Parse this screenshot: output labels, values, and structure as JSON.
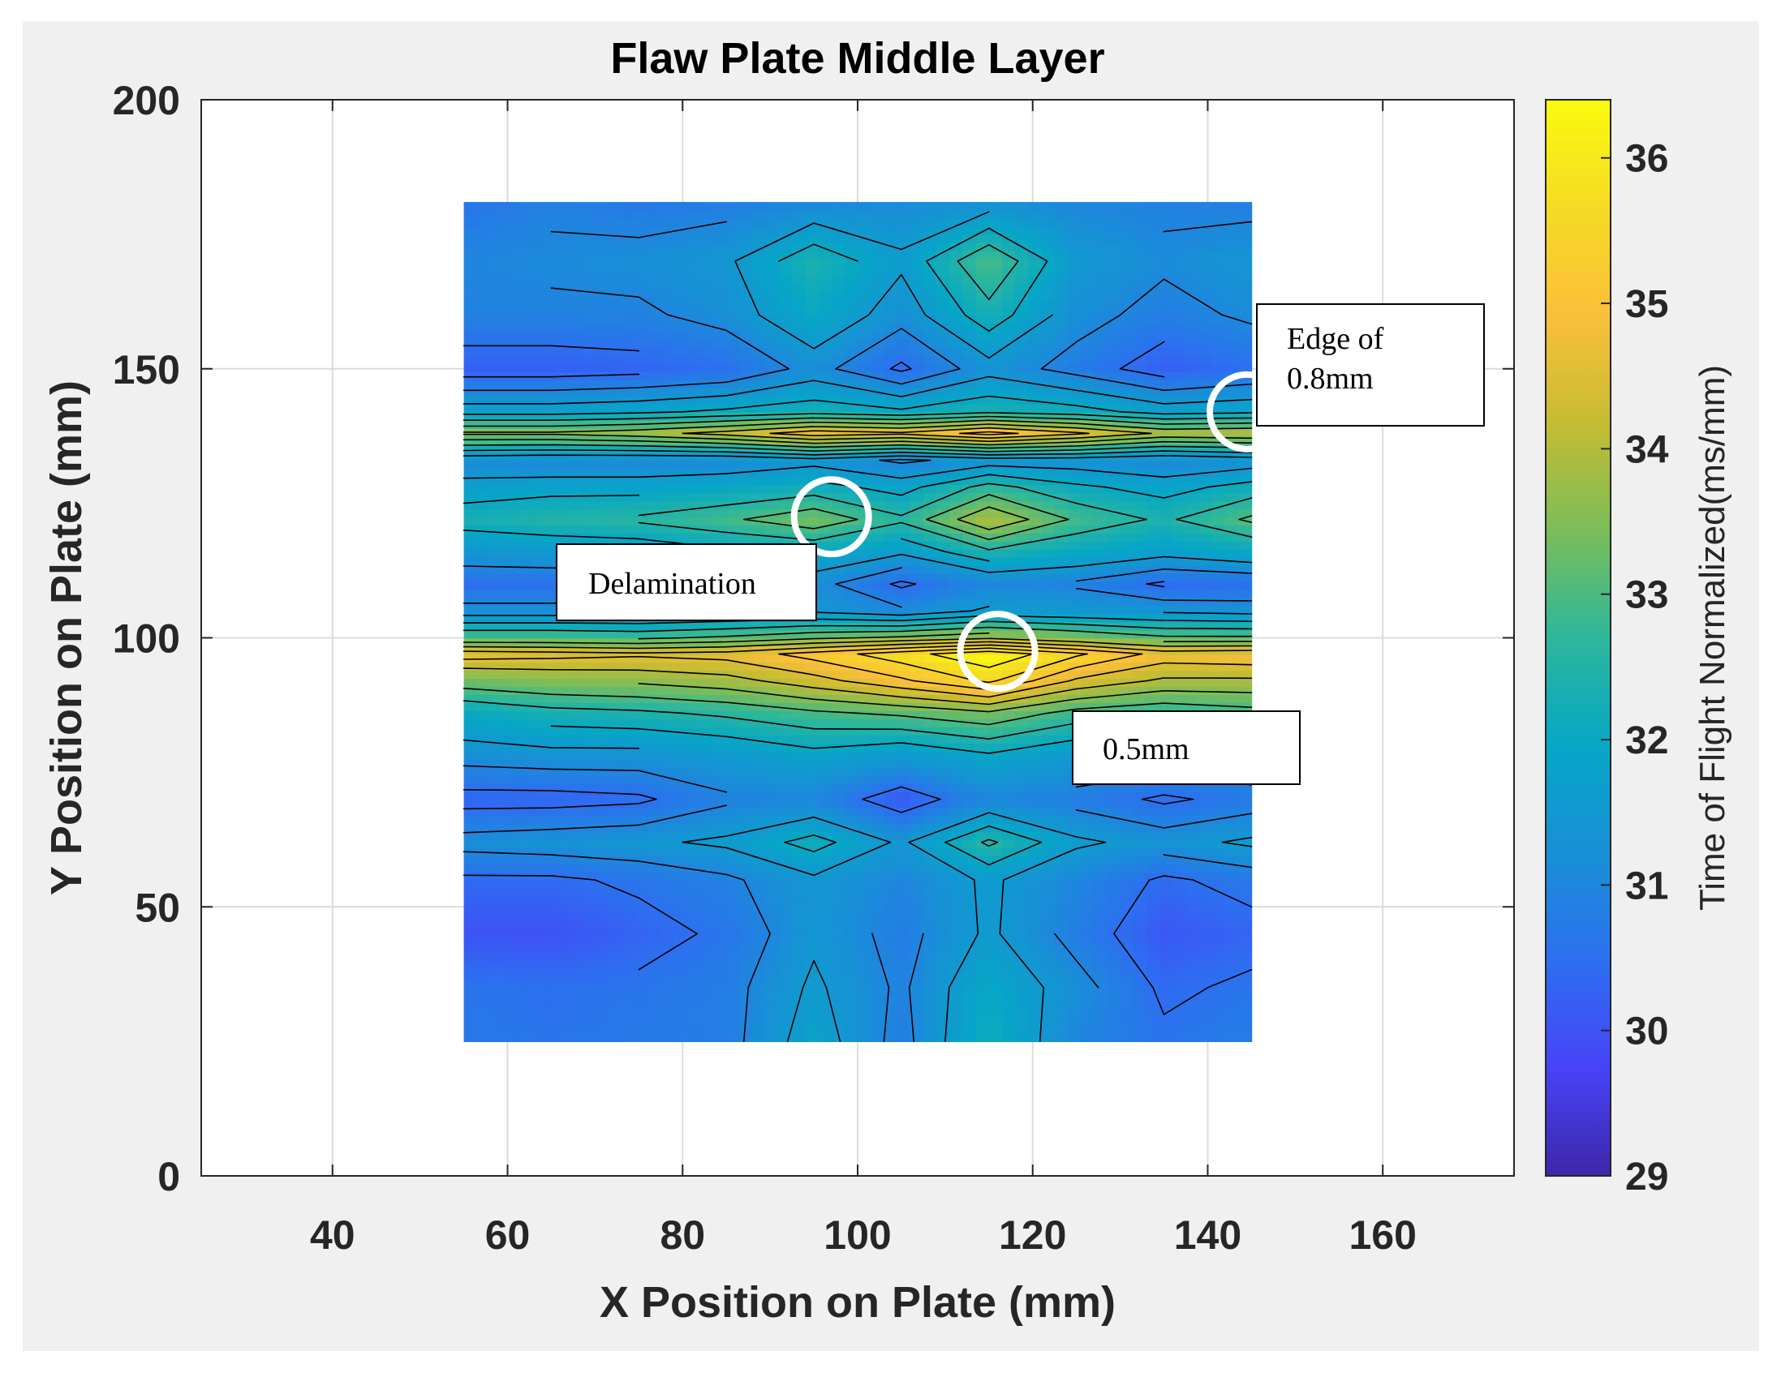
{
  "chart_data": {
    "type": "heatmap",
    "title": "Flaw Plate Middle Layer",
    "xlabel": "X Position on Plate (mm)",
    "ylabel": "Y Position on Plate (mm)",
    "xlim": [
      25,
      175
    ],
    "ylim": [
      0,
      200
    ],
    "xticks": [
      40,
      60,
      80,
      100,
      120,
      140,
      160
    ],
    "yticks": [
      0,
      50,
      100,
      150,
      200
    ],
    "grid": true,
    "data_extent": {
      "x": [
        55,
        145
      ],
      "y": [
        25,
        181
      ]
    },
    "colorbar": {
      "label": "Time of Flight Normalized(ms/mm)",
      "range": [
        29,
        36.4
      ],
      "ticks": [
        29,
        30,
        31,
        32,
        33,
        34,
        35,
        36
      ],
      "colormap": [
        "#3e26a8",
        "#4743f8",
        "#2d6ff0",
        "#1890d6",
        "#06a7c6",
        "#2db79b",
        "#7bbd59",
        "#c6bc32",
        "#fbbf3a",
        "#f5db24",
        "#f9fb0e"
      ]
    },
    "x": [
      55,
      65,
      75,
      85,
      95,
      105,
      115,
      125,
      135,
      145
    ],
    "y": [
      25,
      35,
      45,
      55,
      62,
      70,
      78,
      86,
      92,
      97,
      100,
      105,
      110,
      116,
      122,
      128,
      133,
      138,
      142,
      150,
      160,
      170,
      181
    ],
    "z": [
      [
        30.7,
        30.6,
        30.7,
        30.8,
        31.8,
        30.8,
        32.2,
        31.0,
        30.6,
        30.8
      ],
      [
        30.6,
        30.5,
        30.6,
        30.8,
        31.6,
        30.9,
        32.0,
        31.2,
        30.4,
        30.6
      ],
      [
        30.0,
        30.0,
        30.3,
        30.6,
        31.4,
        30.8,
        31.6,
        30.8,
        30.1,
        30.3
      ],
      [
        30.4,
        30.4,
        30.6,
        30.9,
        31.4,
        31.0,
        31.6,
        31.0,
        30.4,
        30.7
      ],
      [
        31.2,
        31.3,
        31.4,
        31.6,
        32.2,
        31.4,
        32.6,
        31.6,
        31.3,
        31.6
      ],
      [
        30.3,
        30.3,
        30.4,
        30.9,
        31.0,
        30.1,
        31.0,
        30.8,
        30.4,
        30.7
      ],
      [
        31.2,
        31.3,
        31.3,
        31.5,
        31.8,
        31.5,
        31.9,
        31.5,
        31.4,
        31.6
      ],
      [
        32.0,
        32.3,
        32.4,
        32.6,
        32.9,
        33.1,
        33.4,
        32.8,
        32.6,
        32.8
      ],
      [
        33.3,
        33.5,
        33.6,
        33.8,
        34.3,
        34.9,
        35.6,
        34.4,
        33.9,
        33.9
      ],
      [
        34.8,
        34.7,
        34.6,
        34.7,
        35.2,
        35.8,
        36.4,
        35.6,
        34.8,
        34.9
      ],
      [
        33.0,
        33.0,
        32.9,
        33.1,
        33.4,
        33.6,
        33.9,
        33.5,
        33.1,
        33.1
      ],
      [
        31.2,
        31.2,
        31.2,
        31.3,
        31.4,
        31.1,
        31.6,
        31.5,
        31.4,
        31.3
      ],
      [
        30.5,
        30.5,
        30.6,
        30.9,
        31.2,
        30.4,
        31.0,
        30.9,
        30.4,
        30.5
      ],
      [
        31.4,
        31.5,
        31.6,
        31.9,
        32.0,
        31.6,
        32.4,
        32.0,
        31.7,
        32.0
      ],
      [
        32.3,
        32.5,
        32.6,
        32.9,
        33.4,
        32.6,
        34.0,
        32.9,
        32.4,
        33.1
      ],
      [
        31.7,
        31.8,
        31.8,
        32.0,
        32.2,
        31.8,
        32.7,
        32.1,
        31.8,
        32.2
      ],
      [
        31.1,
        31.0,
        31.0,
        31.0,
        31.3,
        30.9,
        31.2,
        31.2,
        31.0,
        31.2
      ],
      [
        33.6,
        33.6,
        33.8,
        34.2,
        34.8,
        34.6,
        35.2,
        34.6,
        33.9,
        34.0
      ],
      [
        31.8,
        31.8,
        31.9,
        32.1,
        32.3,
        32.1,
        32.4,
        32.2,
        31.8,
        31.9
      ],
      [
        30.2,
        30.2,
        30.3,
        30.5,
        31.2,
        30.4,
        31.3,
        30.8,
        30.2,
        30.5
      ],
      [
        30.9,
        30.9,
        30.9,
        31.2,
        32.0,
        31.2,
        32.3,
        31.2,
        30.8,
        31.1
      ],
      [
        31.0,
        31.1,
        31.2,
        31.4,
        32.4,
        31.6,
        33.0,
        31.5,
        31.1,
        31.4
      ],
      [
        30.6,
        30.9,
        30.7,
        30.8,
        31.0,
        31.1,
        31.2,
        31.0,
        30.9,
        30.8
      ]
    ]
  },
  "annotations": [
    {
      "lines": [
        "Edge of",
        "0.8mm"
      ]
    },
    {
      "lines": [
        "Delamination"
      ]
    },
    {
      "lines": [
        "0.5mm"
      ]
    }
  ],
  "markers": [
    {
      "x": 144.5,
      "y": 142
    },
    {
      "x": 97,
      "y": 122.5
    },
    {
      "x": 116,
      "y": 97.5
    }
  ]
}
